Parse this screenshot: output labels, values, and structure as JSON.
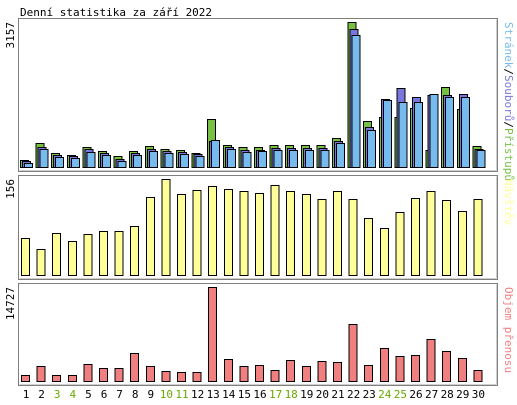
{
  "chart_data": {
    "type": "bar",
    "title": "Denní statistika za září 2022",
    "categories": [
      "1",
      "2",
      "3",
      "4",
      "5",
      "6",
      "7",
      "8",
      "9",
      "10",
      "11",
      "12",
      "13",
      "14",
      "15",
      "16",
      "17",
      "18",
      "19",
      "20",
      "21",
      "22",
      "23",
      "24",
      "25",
      "26",
      "27",
      "28",
      "29",
      "30"
    ],
    "weekend_days": [
      "3",
      "4",
      "10",
      "11",
      "17",
      "18",
      "24",
      "25"
    ],
    "panels": [
      {
        "id": "hits",
        "ymax_label": "3157",
        "ylim": [
          0,
          3157
        ],
        "series": [
          {
            "name": "Přístupů",
            "color": "#77c044",
            "values": [
              160,
              520,
              305,
              270,
              440,
              355,
              250,
              345,
              465,
              390,
              380,
              315,
              1050,
              485,
              430,
              435,
              475,
              475,
              475,
              475,
              640,
              3157,
              1000,
              1080,
              1080,
              1290,
              380,
              1740,
              1270,
              460
            ]
          },
          {
            "name": "Souborů",
            "color": "#7777dd",
            "values": [
              120,
              430,
              255,
              235,
              385,
              305,
              175,
              300,
              400,
              340,
              335,
              280,
              570,
              430,
              370,
              380,
              410,
              410,
              410,
              410,
              560,
              3010,
              880,
              1480,
              1730,
              1530,
              1560,
              1570,
              1600,
              400
            ]
          },
          {
            "name": "Stránek",
            "color": "#77bbee",
            "values": [
              90,
              390,
              215,
              200,
              335,
              255,
              140,
              255,
              355,
              305,
              290,
              245,
              590,
              385,
              330,
              340,
              370,
              370,
              370,
              370,
              520,
              2870,
              810,
              1450,
              1410,
              1410,
              1600,
              1520,
              1530,
              365
            ]
          }
        ]
      },
      {
        "id": "visits",
        "ymax_label": "156",
        "ylim": [
          0,
          156
        ],
        "series": [
          {
            "name": "Návštěv",
            "color": "#ffff99",
            "values": [
              60,
              43,
              68,
              56,
              66,
              71,
              72,
              80,
              126,
              156,
              132,
              138,
              145,
              140,
              137,
              134,
              147,
              136,
              132,
              124,
              137,
              123,
              92,
              77,
              102,
              125,
              137,
              122,
              104,
              124
            ]
          }
        ]
      },
      {
        "id": "volume",
        "ymax_label": "14727",
        "ylim": [
          0,
          14727
        ],
        "series": [
          {
            "name": "Objem přenosu",
            "color": "#f08080",
            "values": [
              950,
              2300,
              900,
              900,
              2700,
              2000,
              2000,
              4400,
              2400,
              1600,
              1450,
              1400,
              14727,
              3500,
              2400,
              2500,
              1800,
              3300,
              2400,
              3100,
              3000,
              9000,
              2500,
              5200,
              3900,
              4100,
              6600,
              4700,
              3600,
              1700
            ]
          }
        ]
      }
    ],
    "colors": {
      "weekday_label": "#000000",
      "weekend_label": "#66aa00"
    }
  }
}
